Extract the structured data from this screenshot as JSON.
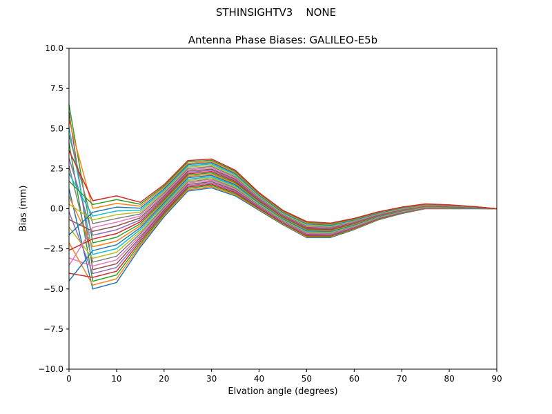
{
  "figure": {
    "suptitle": "STHINSIGHTV3    NONE",
    "title": "Antenna Phase Biases: GALILEO-E5b",
    "xlabel": "Elvation angle (degrees)",
    "ylabel": "Bias (mm)"
  },
  "chart_data": {
    "type": "line",
    "title": "Antenna Phase Biases: GALILEO-E5b",
    "suptitle": "STHINSIGHTV3    NONE",
    "xlabel": "Elvation angle (degrees)",
    "ylabel": "Bias (mm)",
    "xlim": [
      0,
      90
    ],
    "ylim": [
      -10,
      10
    ],
    "xticks": [
      0,
      10,
      20,
      30,
      40,
      50,
      60,
      70,
      80,
      90
    ],
    "yticks": [
      -10,
      -7.5,
      -5,
      -2.5,
      0,
      2.5,
      5,
      7.5,
      10
    ],
    "ytick_labels": [
      "−10.0",
      "−7.5",
      "−5.0",
      "−2.5",
      "0.0",
      "2.5",
      "5.0",
      "7.5",
      "10.0"
    ],
    "grid": false,
    "legend": "none",
    "line_width": 1.5,
    "palette": [
      "#1f77b4",
      "#ff7f0e",
      "#2ca02c",
      "#d62728",
      "#9467bd",
      "#8c564b",
      "#e377c2",
      "#7f7f7f",
      "#bcbd22",
      "#17becf"
    ],
    "x": [
      0,
      5,
      10,
      15,
      20,
      25,
      30,
      35,
      40,
      45,
      50,
      55,
      60,
      65,
      70,
      75,
      80,
      85,
      90
    ],
    "series": [
      [
        1.24,
        -5.0,
        -4.6,
        -2.4,
        -0.5,
        1.1,
        1.3,
        0.8,
        -0.1,
        -1.0,
        -1.8,
        -1.8,
        -1.3,
        -0.7,
        -0.3,
        0.0,
        0.0,
        0.0,
        0.0
      ],
      [
        -2.11,
        -4.76,
        -4.37,
        -2.28,
        -0.41,
        1.18,
        1.38,
        0.87,
        -0.05,
        -0.96,
        -1.76,
        -1.76,
        -1.27,
        -0.68,
        -0.28,
        0.01,
        0.01,
        0.01,
        0.0
      ],
      [
        4.11,
        -4.52,
        -4.13,
        -2.16,
        -0.33,
        1.27,
        1.46,
        0.94,
        0.0,
        -0.92,
        -1.71,
        -1.72,
        -1.24,
        -0.66,
        -0.27,
        0.03,
        0.02,
        0.01,
        0.0
      ],
      [
        -4.02,
        -4.28,
        -3.9,
        -2.03,
        -0.24,
        1.35,
        1.53,
        1.01,
        0.04,
        -0.88,
        -1.67,
        -1.68,
        -1.21,
        -0.63,
        -0.25,
        0.04,
        0.03,
        0.02,
        0.0
      ],
      [
        -0.2,
        -4.04,
        -3.66,
        -1.91,
        -0.15,
        1.43,
        1.61,
        1.08,
        0.09,
        -0.84,
        -1.63,
        -1.64,
        -1.18,
        -0.61,
        -0.23,
        0.05,
        0.04,
        0.02,
        0.0
      ],
      [
        6.02,
        -3.8,
        -3.43,
        -1.79,
        -0.07,
        1.51,
        1.69,
        1.15,
        0.14,
        -0.8,
        -1.58,
        -1.6,
        -1.15,
        -0.59,
        -0.21,
        0.07,
        0.05,
        0.03,
        0.0
      ],
      [
        -3.07,
        -3.57,
        -3.19,
        -1.67,
        0.02,
        1.6,
        1.77,
        1.22,
        0.19,
        -0.77,
        -1.54,
        -1.57,
        -1.12,
        -0.57,
        -0.2,
        0.08,
        0.06,
        0.04,
        0.0
      ],
      [
        2.67,
        -3.33,
        -2.96,
        -1.55,
        0.11,
        1.68,
        1.85,
        1.29,
        0.23,
        -0.73,
        -1.5,
        -1.53,
        -1.09,
        -0.55,
        -0.18,
        0.09,
        0.07,
        0.04,
        0.0
      ],
      [
        -1.15,
        -3.09,
        -2.72,
        -1.43,
        0.2,
        1.76,
        1.93,
        1.36,
        0.28,
        -0.69,
        -1.45,
        -1.49,
        -1.06,
        -0.53,
        -0.16,
        0.1,
        0.08,
        0.05,
        0.0
      ],
      [
        5.07,
        -2.85,
        -2.49,
        -1.3,
        0.28,
        1.84,
        2.0,
        1.43,
        0.33,
        -0.65,
        -1.41,
        -1.45,
        -1.03,
        -0.5,
        -0.14,
        0.12,
        0.09,
        0.05,
        0.0
      ],
      [
        -4.5,
        -2.61,
        -2.25,
        -1.18,
        0.37,
        1.93,
        2.08,
        1.5,
        0.38,
        -0.61,
        -1.37,
        -1.41,
        -1.0,
        -0.48,
        -0.13,
        0.13,
        0.1,
        0.06,
        0.0
      ],
      [
        0.76,
        -2.37,
        -2.02,
        -1.06,
        0.46,
        2.01,
        2.16,
        1.57,
        0.43,
        -0.57,
        -1.32,
        -1.37,
        -0.97,
        -0.46,
        -0.11,
        0.14,
        0.11,
        0.07,
        0.0
      ],
      [
        6.5,
        -2.13,
        -1.78,
        -0.94,
        0.54,
        2.09,
        2.24,
        1.63,
        0.47,
        -0.53,
        -1.28,
        -1.33,
        -0.93,
        -0.44,
        -0.09,
        0.16,
        0.12,
        0.07,
        0.0
      ],
      [
        -2.59,
        -1.89,
        -1.55,
        -0.82,
        0.63,
        2.17,
        2.32,
        1.7,
        0.52,
        -0.49,
        -1.23,
        -1.29,
        -0.9,
        -0.42,
        -0.07,
        0.17,
        0.14,
        0.08,
        0.0
      ],
      [
        3.15,
        -1.65,
        -1.31,
        -0.7,
        0.72,
        2.26,
        2.4,
        1.77,
        0.57,
        -0.45,
        -1.19,
        -1.25,
        -0.87,
        -0.4,
        -0.06,
        0.18,
        0.15,
        0.09,
        0.0
      ],
      [
        -0.67,
        -1.41,
        -1.08,
        -0.57,
        0.8,
        2.34,
        2.47,
        1.84,
        0.62,
        -0.41,
        -1.15,
        -1.21,
        -0.84,
        -0.37,
        -0.04,
        0.2,
        0.16,
        0.09,
        0.0
      ],
      [
        -3.54,
        -1.17,
        -0.84,
        -0.45,
        0.89,
        2.42,
        2.55,
        1.91,
        0.67,
        -0.37,
        -1.1,
        -1.17,
        -0.81,
        -0.35,
        -0.02,
        0.21,
        0.17,
        0.1,
        0.0
      ],
      [
        4.59,
        -0.93,
        -0.61,
        -0.33,
        0.98,
        2.5,
        2.63,
        1.98,
        0.71,
        -0.34,
        -1.06,
        -1.14,
        -0.78,
        -0.33,
        0.0,
        0.22,
        0.18,
        0.1,
        0.0
      ],
      [
        0.28,
        -0.7,
        -0.37,
        -0.21,
        1.07,
        2.59,
        2.71,
        2.05,
        0.76,
        -0.3,
        -1.02,
        -1.1,
        -0.75,
        -0.31,
        0.01,
        0.23,
        0.19,
        0.11,
        0.0
      ],
      [
        2.2,
        -0.46,
        -0.14,
        -0.09,
        1.15,
        2.67,
        2.79,
        2.12,
        0.81,
        -0.26,
        -0.97,
        -1.06,
        -0.72,
        -0.29,
        0.03,
        0.25,
        0.2,
        0.12,
        0.0
      ],
      [
        -1.63,
        -0.22,
        0.1,
        0.03,
        1.24,
        2.75,
        2.87,
        2.19,
        0.86,
        -0.22,
        -0.93,
        -1.02,
        -0.69,
        -0.27,
        0.05,
        0.26,
        0.21,
        0.12,
        0.0
      ],
      [
        5.54,
        0.02,
        0.33,
        0.16,
        1.33,
        2.83,
        2.94,
        2.26,
        0.9,
        -0.18,
        -0.89,
        -0.98,
        -0.66,
        -0.24,
        0.07,
        0.27,
        0.22,
        0.13,
        0.0
      ],
      [
        1.72,
        0.26,
        0.57,
        0.28,
        1.41,
        2.92,
        3.02,
        2.33,
        0.95,
        -0.14,
        -0.84,
        -0.94,
        -0.63,
        -0.22,
        0.08,
        0.29,
        0.23,
        0.13,
        0.0
      ],
      [
        3.63,
        0.5,
        0.8,
        0.4,
        1.5,
        3.0,
        3.1,
        2.4,
        1.0,
        -0.1,
        -0.8,
        -0.9,
        -0.6,
        -0.2,
        0.1,
        0.3,
        0.24,
        0.14,
        0.0
      ]
    ]
  }
}
